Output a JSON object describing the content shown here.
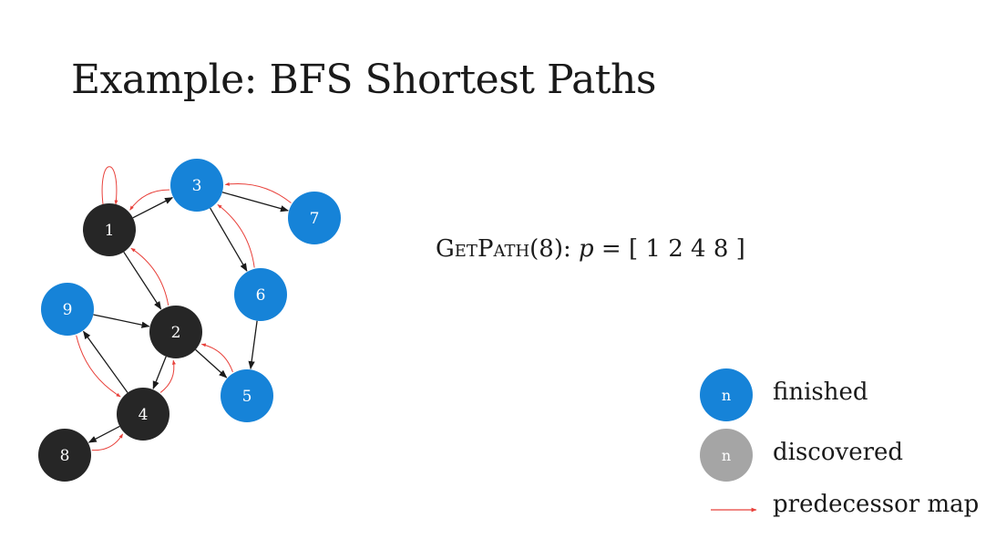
{
  "title": "Example: BFS Shortest Paths",
  "colors": {
    "finished": "#1683d8",
    "discovered": "#a5a5a5",
    "black": "#262626",
    "edge": "#1a1a1a",
    "predecessor": "#e8403a"
  },
  "graph": {
    "nodes": [
      {
        "id": "1",
        "label": "1",
        "state": "black"
      },
      {
        "id": "2",
        "label": "2",
        "state": "black"
      },
      {
        "id": "3",
        "label": "3",
        "state": "finished"
      },
      {
        "id": "4",
        "label": "4",
        "state": "black"
      },
      {
        "id": "5",
        "label": "5",
        "state": "finished"
      },
      {
        "id": "6",
        "label": "6",
        "state": "finished"
      },
      {
        "id": "7",
        "label": "7",
        "state": "finished"
      },
      {
        "id": "8",
        "label": "8",
        "state": "black"
      },
      {
        "id": "9",
        "label": "9",
        "state": "finished"
      }
    ],
    "edges": [
      {
        "from": "1",
        "to": "3"
      },
      {
        "from": "1",
        "to": "2"
      },
      {
        "from": "3",
        "to": "7"
      },
      {
        "from": "3",
        "to": "6"
      },
      {
        "from": "6",
        "to": "5"
      },
      {
        "from": "9",
        "to": "2"
      },
      {
        "from": "2",
        "to": "5"
      },
      {
        "from": "2",
        "to": "4"
      },
      {
        "from": "4",
        "to": "9"
      },
      {
        "from": "4",
        "to": "8"
      }
    ],
    "predecessor_edges": [
      {
        "from": "1",
        "to": "1"
      },
      {
        "from": "3",
        "to": "1"
      },
      {
        "from": "7",
        "to": "3"
      },
      {
        "from": "6",
        "to": "3"
      },
      {
        "from": "2",
        "to": "1"
      },
      {
        "from": "5",
        "to": "2"
      },
      {
        "from": "4",
        "to": "2"
      },
      {
        "from": "9",
        "to": "4"
      },
      {
        "from": "8",
        "to": "4"
      }
    ]
  },
  "getpath": {
    "func_first": "G",
    "func_rest1": "ET",
    "func_mid": "P",
    "func_rest2": "ATH",
    "args": "(8): ",
    "var": "p",
    "value": " = [ 1 2 4 8 ]"
  },
  "legend": {
    "finished": {
      "symbol": "n",
      "label": "finished"
    },
    "discovered": {
      "symbol": "n",
      "label": "discovered"
    },
    "predecessor": {
      "label": "predecessor map"
    }
  }
}
